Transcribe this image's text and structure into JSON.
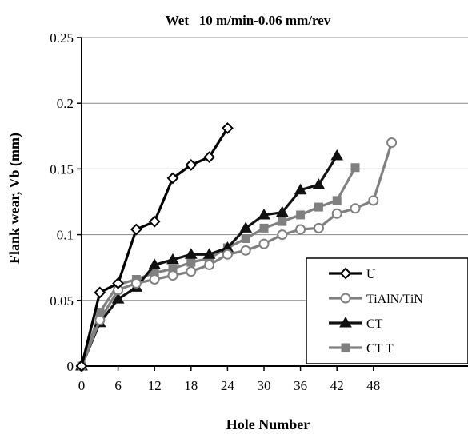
{
  "chart_data": {
    "type": "line",
    "title": "Wet   10 m/min-0.06 mm/rev",
    "xlabel": "Hole Number",
    "ylabel": "Flank wear, Vb (mm)",
    "xlim": [
      0,
      54
    ],
    "ylim": [
      0,
      0.25
    ],
    "xticks": [
      0,
      6,
      12,
      18,
      24,
      30,
      36,
      42,
      48
    ],
    "yticks": [
      0,
      0.05,
      0.1,
      0.15,
      0.2,
      0.25
    ],
    "xtick_labels": [
      "0",
      "6",
      "12",
      "18",
      "24",
      "30",
      "36",
      "42",
      "48"
    ],
    "ytick_labels": [
      "0",
      "0.05",
      "0.1",
      "0.15",
      "0.2",
      "0.25"
    ],
    "grid": "horizontal",
    "legend_position": "bottom-right",
    "series": [
      {
        "name": "U",
        "marker": "diamond-open",
        "color": "#000000",
        "x": [
          0,
          3,
          6,
          9,
          12,
          15,
          18,
          21,
          24
        ],
        "y": [
          0.0,
          0.056,
          0.063,
          0.104,
          0.11,
          0.143,
          0.153,
          0.159,
          0.181
        ]
      },
      {
        "name": "TiAlN/TiN",
        "marker": "circle-open",
        "color": "#808080",
        "x": [
          0,
          3,
          6,
          9,
          12,
          15,
          18,
          21,
          24,
          27,
          30,
          33,
          36,
          39,
          42,
          45,
          48,
          51
        ],
        "y": [
          0.0,
          0.035,
          0.058,
          0.063,
          0.066,
          0.069,
          0.072,
          0.077,
          0.085,
          0.088,
          0.093,
          0.1,
          0.104,
          0.105,
          0.116,
          0.12,
          0.126,
          0.17
        ]
      },
      {
        "name": "CT",
        "marker": "triangle-filled",
        "color": "#111111",
        "x": [
          0,
          3,
          6,
          9,
          12,
          15,
          18,
          21,
          24,
          27,
          30,
          33,
          36,
          39,
          42
        ],
        "y": [
          0.0,
          0.033,
          0.051,
          0.06,
          0.077,
          0.081,
          0.085,
          0.085,
          0.09,
          0.105,
          0.115,
          0.117,
          0.134,
          0.138,
          0.16
        ]
      },
      {
        "name": "CT T",
        "marker": "square-filled",
        "color": "#808080",
        "x": [
          0,
          3,
          6,
          9,
          12,
          15,
          18,
          21,
          24,
          27,
          30,
          33,
          36,
          39,
          42,
          45
        ],
        "y": [
          0.0,
          0.041,
          0.062,
          0.066,
          0.071,
          0.074,
          0.079,
          0.082,
          0.09,
          0.097,
          0.105,
          0.11,
          0.115,
          0.121,
          0.126,
          0.151
        ]
      }
    ]
  }
}
